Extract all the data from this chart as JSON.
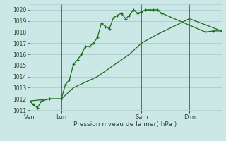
{
  "bg_color": "#cce8e6",
  "grid_color": "#aacccc",
  "line_color": "#1a6b1a",
  "tick_label_color": "#334433",
  "xlabel": "Pression niveau de la mer( hPa )",
  "ylim": [
    1011,
    1020.5
  ],
  "yticks": [
    1011,
    1012,
    1013,
    1014,
    1015,
    1016,
    1017,
    1018,
    1019,
    1020
  ],
  "day_positions": [
    0,
    8,
    28,
    40
  ],
  "day_labels": [
    "Ven",
    "Lun",
    "Sam",
    "Dim"
  ],
  "series1_x": [
    0,
    1,
    2,
    3,
    5,
    8,
    9,
    10,
    11,
    12,
    13,
    14,
    15,
    16,
    17,
    18,
    19,
    20,
    21,
    22,
    23,
    24,
    25,
    26,
    27,
    28,
    29,
    30,
    31,
    32,
    33,
    44,
    46,
    48
  ],
  "series1_y": [
    1011.8,
    1011.5,
    1011.2,
    1011.8,
    1012.0,
    1012.0,
    1013.3,
    1013.7,
    1015.1,
    1015.5,
    1016.0,
    1016.7,
    1016.7,
    1017.0,
    1017.5,
    1018.8,
    1018.5,
    1018.3,
    1019.3,
    1019.5,
    1019.7,
    1019.2,
    1019.5,
    1020.0,
    1019.7,
    1019.8,
    1020.0,
    1020.0,
    1020.0,
    1020.0,
    1019.7,
    1018.0,
    1018.1,
    1018.1
  ],
  "series2_x": [
    0,
    5,
    8,
    11,
    14,
    17,
    21,
    25,
    28,
    32,
    36,
    40,
    48
  ],
  "series2_y": [
    1011.8,
    1012.0,
    1012.0,
    1013.0,
    1013.5,
    1014.0,
    1015.0,
    1016.0,
    1017.0,
    1017.8,
    1018.5,
    1019.2,
    1018.1
  ],
  "xlim": [
    0,
    48
  ]
}
